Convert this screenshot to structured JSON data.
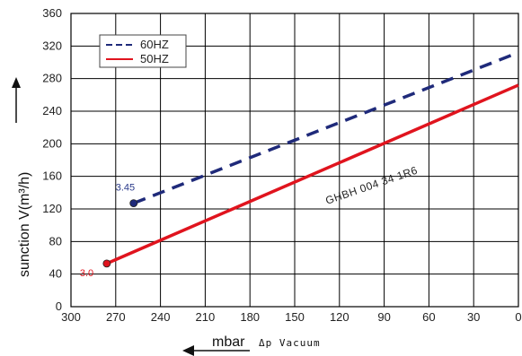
{
  "chart_data": {
    "type": "line",
    "xlabel": "mbar",
    "xlabel_suffix": "Δp Vacuum",
    "ylabel": "sunction V(m³/h)",
    "xlim": [
      300,
      0
    ],
    "ylim": [
      0,
      360
    ],
    "x_ticks": [
      "300",
      "270",
      "240",
      "210",
      "180",
      "150",
      "120",
      "90",
      "60",
      "30",
      "0"
    ],
    "y_ticks": [
      "0",
      "40",
      "80",
      "120",
      "160",
      "200",
      "240",
      "280",
      "320",
      "360"
    ],
    "grid": true,
    "legend_position": "top-left",
    "series": [
      {
        "name": "60HZ",
        "color": "#1f2a7a",
        "style": "dashed",
        "x": [
          258,
          0
        ],
        "y": [
          127,
          312
        ],
        "start_label": "3.45",
        "start_label_color": "#2a3a8a"
      },
      {
        "name": "50HZ",
        "color": "#e0141e",
        "style": "solid",
        "x": [
          276,
          0
        ],
        "y": [
          53,
          272
        ],
        "start_label": "3.0",
        "start_label_color": "#e0141e"
      }
    ],
    "annotations": [
      {
        "text": "GHBH 004 34 1R6"
      }
    ]
  }
}
